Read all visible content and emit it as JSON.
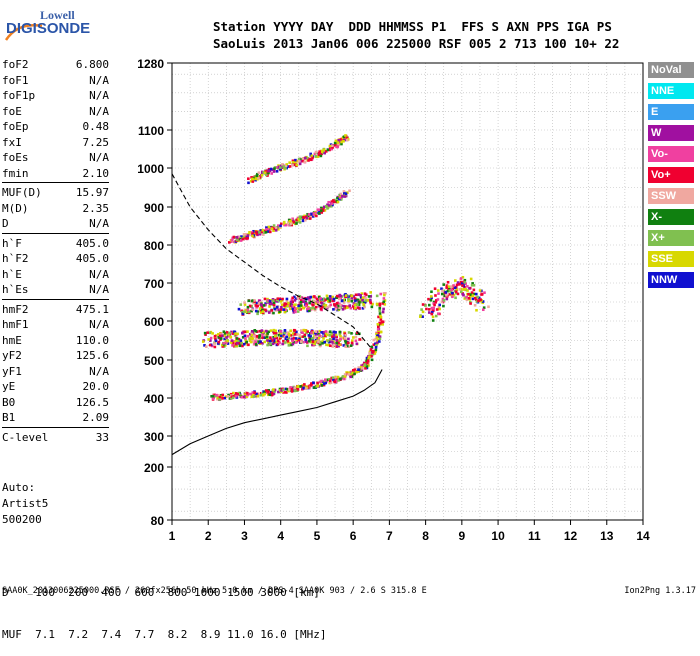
{
  "logo": {
    "line1": "Lowell",
    "line2": "DIGISONDE"
  },
  "header": {
    "line1": "Station YYYY DAY  DDD HHMMSS P1  FFS S AXN PPS IGA PS",
    "line2": "SaoLuis 2013 Jan06 006 225000 RSF 005 2 713 100 10+ 22"
  },
  "params": [
    {
      "group": 1,
      "items": [
        {
          "name": "foF2",
          "value": "6.800"
        },
        {
          "name": "foF1",
          "value": "N/A"
        },
        {
          "name": "foF1p",
          "value": "N/A"
        },
        {
          "name": "foE",
          "value": "N/A"
        },
        {
          "name": "foEp",
          "value": "0.48"
        },
        {
          "name": "fxI",
          "value": "7.25"
        },
        {
          "name": "foEs",
          "value": "N/A"
        },
        {
          "name": "fmin",
          "value": "2.10"
        }
      ]
    },
    {
      "group": 2,
      "items": [
        {
          "name": "MUF(D)",
          "value": "15.97"
        },
        {
          "name": "M(D)",
          "value": "2.35"
        },
        {
          "name": "D",
          "value": "N/A"
        }
      ]
    },
    {
      "group": 3,
      "items": [
        {
          "name": "h`F",
          "value": "405.0"
        },
        {
          "name": "h`F2",
          "value": "405.0"
        },
        {
          "name": "h`E",
          "value": "N/A"
        },
        {
          "name": "h`Es",
          "value": "N/A"
        }
      ]
    },
    {
      "group": 4,
      "items": [
        {
          "name": "hmF2",
          "value": "475.1"
        },
        {
          "name": "hmF1",
          "value": "N/A"
        },
        {
          "name": "hmE",
          "value": "110.0"
        },
        {
          "name": "yF2",
          "value": "125.6"
        },
        {
          "name": "yF1",
          "value": "N/A"
        },
        {
          "name": "yE",
          "value": "20.0"
        },
        {
          "name": "B0",
          "value": "126.5"
        },
        {
          "name": "B1",
          "value": "2.09"
        }
      ]
    },
    {
      "group": 5,
      "items": [
        {
          "name": "C-level",
          "value": "33"
        }
      ]
    }
  ],
  "auto": {
    "line1": "Auto:",
    "line2": "Artist5",
    "line3": "500200"
  },
  "muf_table": {
    "row1": "D    100  200  400  600  800 1000 1500 3000 [km]",
    "row2": "MUF  7.1  7.2  7.4  7.7  8.2  8.9 11.0 16.0 [MHz]"
  },
  "footer": {
    "left": "SAA0K_2013006225000.RSF / 260fx256h 50 kHz 5.0 km / DPS-4 SAA0K 903 / 2.6 S 315.8 E",
    "right": "Ion2Png 1.3.17"
  },
  "legend": [
    {
      "label": "NoVal",
      "color": "#909090"
    },
    {
      "label": "NNE",
      "color": "#00e8f0"
    },
    {
      "label": "E",
      "color": "#3aa0f0"
    },
    {
      "label": "W",
      "color": "#a010a0"
    },
    {
      "label": "Vo-",
      "color": "#f040a0"
    },
    {
      "label": "Vo+",
      "color": "#f00030"
    },
    {
      "label": "SSW",
      "color": "#f0a8a0"
    },
    {
      "label": "X-",
      "color": "#108010"
    },
    {
      "label": "X+",
      "color": "#80c050"
    },
    {
      "label": "SSE",
      "color": "#d8d800"
    },
    {
      "label": "NNW",
      "color": "#1010d0"
    }
  ],
  "chart_data": {
    "type": "scatter",
    "xlabel": "",
    "ylabel": "",
    "xlim": [
      1,
      14
    ],
    "ylim": [
      80,
      1280
    ],
    "x_ticks": [
      1,
      2,
      3,
      4,
      5,
      6,
      7,
      8,
      9,
      10,
      11,
      12,
      13,
      14
    ],
    "y_ticks": [
      80,
      200,
      300,
      400,
      500,
      600,
      700,
      800,
      900,
      1000,
      1100,
      1280
    ],
    "grid": true,
    "traces": [
      {
        "name": "F2 O-trace",
        "x": [
          2.1,
          2.5,
          3,
          3.5,
          4,
          4.5,
          5,
          5.5,
          6,
          6.3,
          6.5,
          6.7,
          6.8
        ],
        "y": [
          405,
          408,
          412,
          416,
          422,
          430,
          440,
          452,
          470,
          490,
          520,
          580,
          680
        ]
      },
      {
        "name": "F2 2-hop",
        "x": [
          2.6,
          3,
          3.5,
          4,
          4.5,
          5,
          5.5,
          5.8
        ],
        "y": [
          815,
          825,
          840,
          855,
          870,
          890,
          920,
          940
        ]
      },
      {
        "name": "F2 3-hop",
        "x": [
          3.1,
          3.5,
          4,
          4.5,
          5,
          5.5,
          5.8
        ],
        "y": [
          970,
          990,
          1005,
          1020,
          1040,
          1065,
          1085
        ]
      },
      {
        "name": "spread band 1",
        "x": [
          3,
          3.5,
          4,
          4.5,
          5,
          5.5,
          6,
          6.5
        ],
        "y": [
          640,
          642,
          645,
          648,
          650,
          652,
          655,
          660
        ]
      },
      {
        "name": "spread band 2",
        "x": [
          2,
          2.5,
          3,
          3.5,
          4,
          4.5,
          5,
          5.5,
          6
        ],
        "y": [
          555,
          556,
          558,
          560,
          562,
          560,
          558,
          556,
          555
        ]
      },
      {
        "name": "spread cluster 8-9.5 MHz",
        "x": [
          8,
          8.5,
          9,
          9.5
        ],
        "y": [
          620,
          680,
          700,
          650
        ]
      }
    ],
    "profile_solid": {
      "x": [
        1,
        1.5,
        2,
        2.5,
        3,
        3.5,
        4,
        4.5,
        5,
        5.5,
        6,
        6.3,
        6.6,
        6.8
      ],
      "y": [
        240,
        275,
        300,
        320,
        335,
        345,
        355,
        365,
        375,
        390,
        405,
        420,
        440,
        475
      ]
    },
    "profile_dashed": {
      "x": [
        1,
        1.5,
        2,
        2.5,
        3,
        3.5,
        4,
        4.5,
        5,
        5.5,
        6,
        6.5
      ],
      "y": [
        985,
        900,
        840,
        790,
        755,
        720,
        690,
        665,
        645,
        615,
        585,
        530
      ]
    }
  }
}
